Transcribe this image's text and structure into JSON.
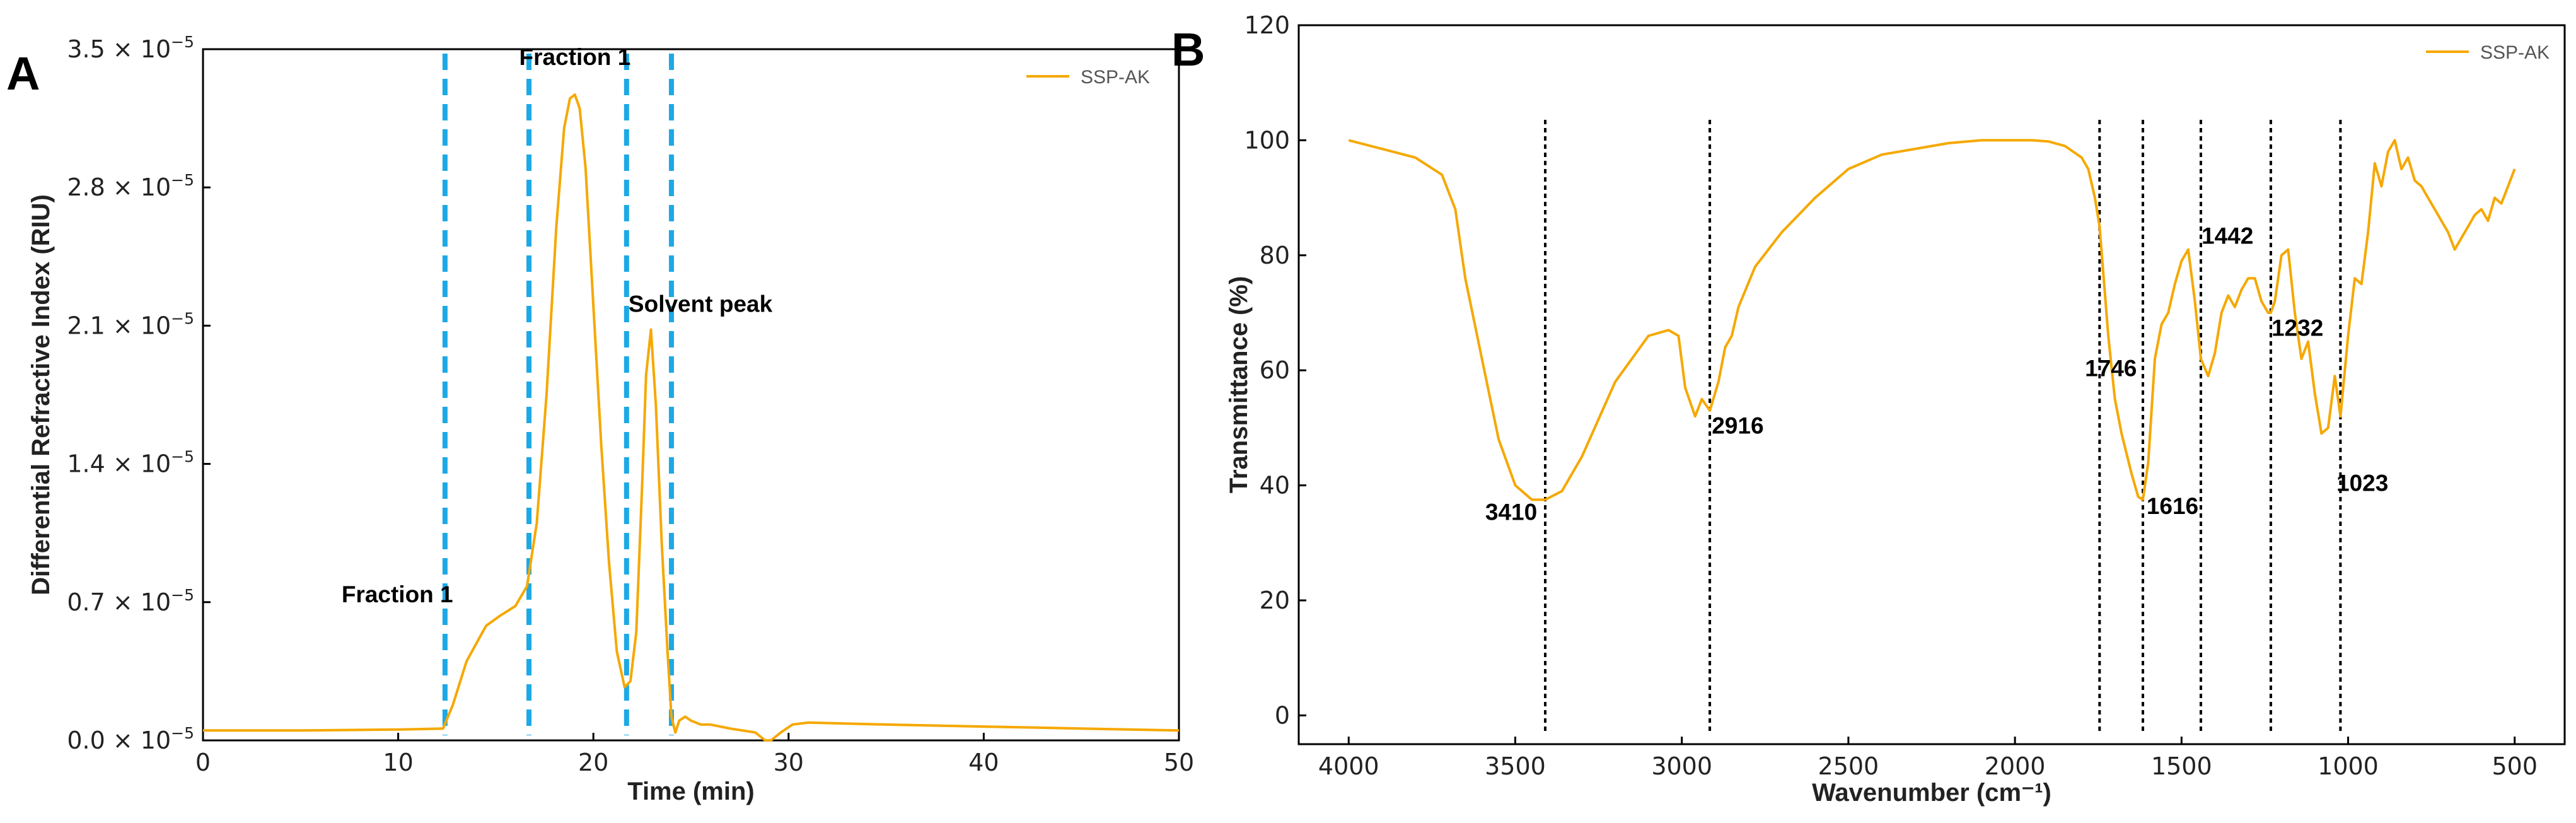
{
  "colors": {
    "series": "#F5A800",
    "marker_a": "#1CA9E6",
    "marker_b": "#000000",
    "axis": "#000000"
  },
  "chart_data": [
    {
      "panel": "A",
      "type": "line",
      "xlabel": "Time (min)",
      "ylabel": "Differential Refractive Index (RIU)",
      "xlim": [
        0,
        50
      ],
      "ylim": [
        0,
        3.5e-05
      ],
      "grid": false,
      "legend_position": "top-right",
      "x_ticks": [
        0,
        10,
        20,
        30,
        40,
        50
      ],
      "x_tick_labels": [
        "0",
        "10",
        "20",
        "30",
        "40",
        "50"
      ],
      "y_ticks": [
        0,
        7e-06,
        1.4e-05,
        2.1e-05,
        2.8e-05,
        3.5e-05
      ],
      "y_tick_mantissas": [
        "0.0",
        "0.7",
        "1.4",
        "2.1",
        "2.8",
        "3.5"
      ],
      "y_tick_base": "× 10",
      "y_tick_exponent": "−5",
      "series": [
        {
          "name": "SSP-AK",
          "x": [
            0,
            5,
            10,
            12.3,
            12.8,
            13.5,
            14.5,
            15.2,
            16,
            16.6,
            17.1,
            17.6,
            18.1,
            18.5,
            18.8,
            19.05,
            19.3,
            19.6,
            20,
            20.4,
            20.8,
            21.2,
            21.6,
            21.9,
            22.2,
            22.5,
            22.7,
            22.95,
            23.2,
            23.5,
            23.8,
            24.0,
            24.2,
            24.4,
            24.7,
            25.0,
            25.5,
            26,
            27,
            28.3,
            28.8,
            29.1,
            29.6,
            30.2,
            31,
            35,
            40,
            45,
            50
          ],
          "values": [
            5e-07,
            5e-07,
            5.5e-07,
            6e-07,
            1.8e-06,
            4e-06,
            5.8e-06,
            6.3e-06,
            6.8e-06,
            7.8e-06,
            1.1e-05,
            1.75e-05,
            2.6e-05,
            3.1e-05,
            3.25e-05,
            3.27e-05,
            3.2e-05,
            2.9e-05,
            2.2e-05,
            1.5e-05,
            9e-06,
            4.5e-06,
            2.7e-06,
            3e-06,
            5.5e-06,
            1.3e-05,
            1.85e-05,
            2.08e-05,
            1.7e-05,
            1e-05,
            4.5e-06,
            1.2e-06,
            4e-07,
            1e-06,
            1.2e-06,
            1e-06,
            8e-07,
            8e-07,
            6e-07,
            4e-07,
            0.0,
            -2e-07,
            4e-07,
            8e-07,
            9e-07,
            8e-07,
            7e-07,
            6e-07,
            5e-07
          ]
        }
      ],
      "vertical_markers": [
        12.4,
        16.7,
        21.7,
        24.0
      ],
      "annotations": [
        {
          "text": "Fraction 1",
          "x": 7.1,
          "y": 7e-06
        },
        {
          "text": "Fraction 1",
          "x": 16.2,
          "y": 3.42e-05
        },
        {
          "text": "Solvent peak",
          "x": 21.8,
          "y": 2.17e-05
        }
      ]
    },
    {
      "panel": "B",
      "type": "line",
      "xlabel": "Wavenumber (cm⁻¹)",
      "ylabel": "Transmittance (%)",
      "xlim": [
        4150,
        350
      ],
      "ylim": [
        -5,
        120
      ],
      "grid": false,
      "legend_position": "top-right",
      "x_ticks": [
        4000,
        3500,
        3000,
        2500,
        2000,
        1500,
        1000,
        500
      ],
      "x_tick_labels": [
        "4000",
        "3500",
        "3000",
        "2500",
        "2000",
        "1500",
        "1000",
        "500"
      ],
      "y_ticks": [
        0,
        20,
        40,
        60,
        80,
        100,
        120
      ],
      "y_tick_labels": [
        "0",
        "20",
        "40",
        "60",
        "80",
        "100",
        "120"
      ],
      "series": [
        {
          "name": "SSP-AK",
          "x": [
            4000,
            3900,
            3800,
            3720,
            3680,
            3650,
            3600,
            3550,
            3500,
            3450,
            3410,
            3360,
            3300,
            3200,
            3100,
            3040,
            3010,
            2990,
            2960,
            2940,
            2916,
            2890,
            2870,
            2850,
            2830,
            2780,
            2700,
            2600,
            2500,
            2400,
            2300,
            2200,
            2100,
            2000,
            1950,
            1900,
            1850,
            1800,
            1780,
            1760,
            1746,
            1720,
            1700,
            1680,
            1650,
            1630,
            1616,
            1600,
            1580,
            1560,
            1540,
            1520,
            1500,
            1480,
            1460,
            1442,
            1420,
            1400,
            1380,
            1360,
            1340,
            1320,
            1300,
            1280,
            1260,
            1240,
            1232,
            1220,
            1200,
            1180,
            1160,
            1140,
            1120,
            1100,
            1080,
            1060,
            1040,
            1023,
            1000,
            980,
            960,
            940,
            920,
            900,
            880,
            860,
            840,
            820,
            800,
            780,
            760,
            740,
            720,
            700,
            680,
            660,
            640,
            620,
            600,
            580,
            560,
            540,
            520,
            500
          ],
          "values": [
            100,
            98.5,
            97,
            94,
            88,
            76,
            62,
            48,
            40,
            37.5,
            37.5,
            39,
            45,
            58,
            66,
            67,
            66,
            57,
            52,
            55,
            53,
            58,
            64,
            66,
            71,
            78,
            84,
            90,
            95,
            97.5,
            98.5,
            99.5,
            100,
            100,
            100,
            99.8,
            99,
            97,
            95,
            90,
            85,
            66,
            55,
            49,
            42,
            38,
            37.5,
            44,
            62,
            68,
            70,
            75,
            79,
            81,
            72,
            62,
            59,
            63,
            70,
            73,
            71,
            74,
            76,
            76,
            72,
            70,
            70,
            72,
            80,
            81,
            70,
            62,
            65,
            56,
            49,
            50,
            59,
            52,
            66,
            76,
            75,
            84,
            96,
            92,
            98,
            100,
            95,
            97,
            93,
            92,
            90,
            88,
            86,
            84,
            81,
            83,
            85,
            87,
            88,
            86,
            90,
            89,
            92,
            95
          ]
        }
      ],
      "vertical_markers": [
        3410,
        2916,
        1746,
        1616,
        1442,
        1232,
        1023
      ],
      "annotations": [
        {
          "text": "3410",
          "x": 3590,
          "y": 34
        },
        {
          "text": "2916",
          "x": 2910,
          "y": 49
        },
        {
          "text": "1746",
          "x": 1790,
          "y": 59
        },
        {
          "text": "1616",
          "x": 1605,
          "y": 35
        },
        {
          "text": "1442",
          "x": 1440,
          "y": 82
        },
        {
          "text": "1232",
          "x": 1230,
          "y": 66
        },
        {
          "text": "1023",
          "x": 1035,
          "y": 39
        }
      ]
    }
  ]
}
